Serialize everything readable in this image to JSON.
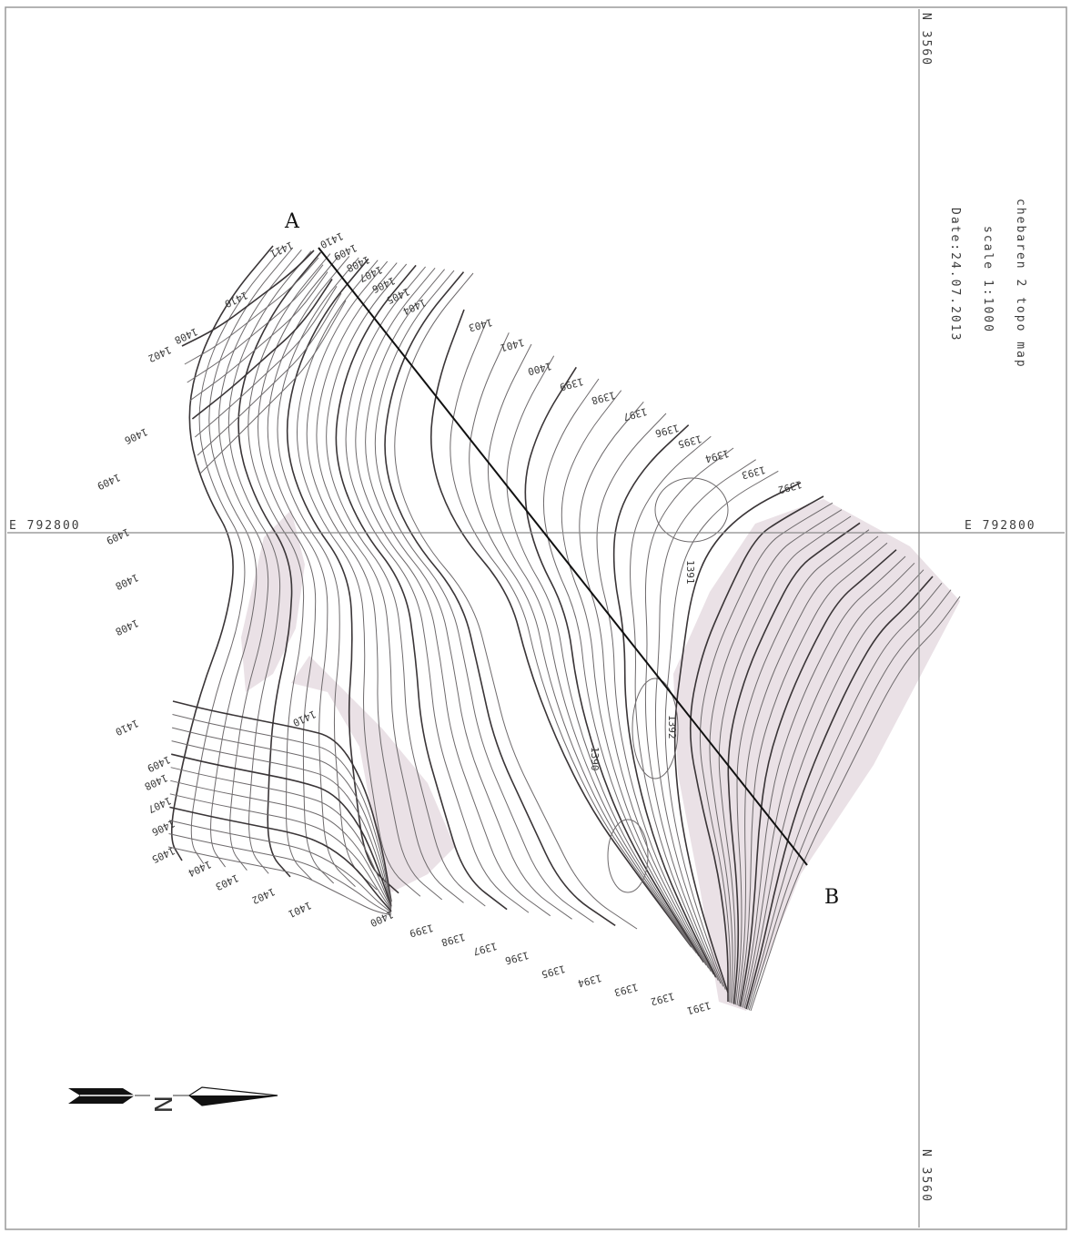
{
  "title_block": {
    "title": "chebaren 2 topo map",
    "scale": "scale 1:1000",
    "date": "Date:24.07.2013"
  },
  "grid": {
    "easting_label_left": "E 792800",
    "easting_label_right": "E 792800",
    "northing_label_top": "N 3560",
    "northing_label_bottom": "N 3560"
  },
  "section_line": {
    "start_label": "A",
    "end_label": "B"
  },
  "north_arrow": {
    "letter": "N"
  },
  "contour_labels": {
    "top": [
      "1410",
      "1409",
      "1408",
      "1407",
      "1406",
      "1405",
      "1404",
      "1411",
      "1410",
      "1408",
      "1402"
    ],
    "right_upper": [
      "1403",
      "1401",
      "1400",
      "1399",
      "1398",
      "1397",
      "1396",
      "1395",
      "1394",
      "1393",
      "1392"
    ],
    "left": [
      "1406",
      "1409",
      "1409",
      "1408",
      "1408",
      "1410",
      "1410"
    ],
    "bottom_left": [
      "1409",
      "1408",
      "1407",
      "1406",
      "1405",
      "1404",
      "1403",
      "1402",
      "1401",
      "1400"
    ],
    "bottom": [
      "1399",
      "1398",
      "1397",
      "1396",
      "1395",
      "1394",
      "1393",
      "1392",
      "1391"
    ],
    "inner": [
      "1391",
      "1392",
      "1390"
    ]
  },
  "colors": {
    "contour": "#6e6a6c",
    "index_contour": "#3a3537",
    "slope_shade": "#d9c8d1",
    "grid": "#8a8a8a"
  }
}
